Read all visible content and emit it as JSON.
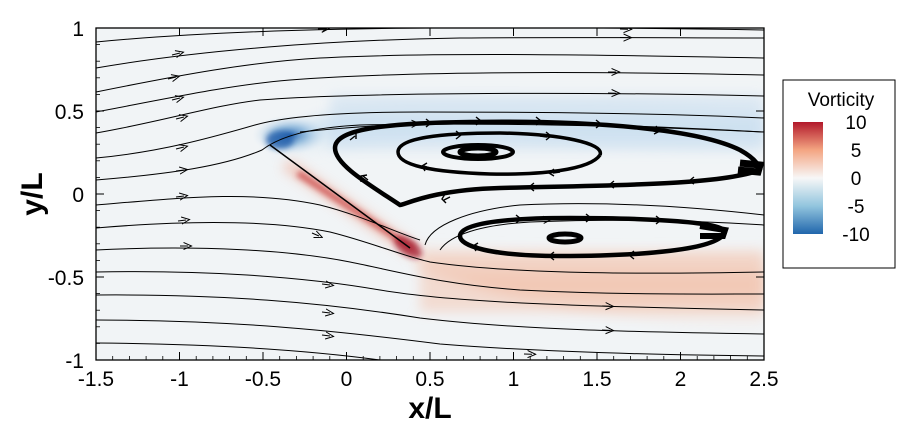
{
  "chart_data": {
    "type": "contour",
    "title": "",
    "xlabel": "x/L",
    "ylabel": "y/L",
    "xlim": [
      -1.5,
      2.5
    ],
    "ylim": [
      -1,
      1
    ],
    "xticks": [
      "-1.5",
      "-1",
      "-0.5",
      "0",
      "0.5",
      "1",
      "1.5",
      "2",
      "2.5"
    ],
    "yticks": [
      "1",
      "0.5",
      "0",
      "-0.5",
      "-1"
    ],
    "field": "vorticity",
    "colorbar": {
      "title": "Vorticity",
      "ticks": [
        "10",
        "5",
        "0",
        "-5",
        "-10"
      ],
      "range": [
        -10,
        10
      ],
      "colors": [
        "#2166ac",
        "#92c5de",
        "#f7f7f7",
        "#f4a582",
        "#b2182b"
      ]
    },
    "plate": {
      "x": [
        -0.45,
        0.42
      ],
      "y": [
        0.3,
        -0.32
      ]
    },
    "vortices": [
      {
        "center": [
          0.8,
          0.24
        ],
        "sign": "clockwise"
      },
      {
        "center": [
          1.3,
          -0.27
        ],
        "sign": "counter-clockwise"
      }
    ],
    "streamlines_shown": true,
    "grid": false
  }
}
